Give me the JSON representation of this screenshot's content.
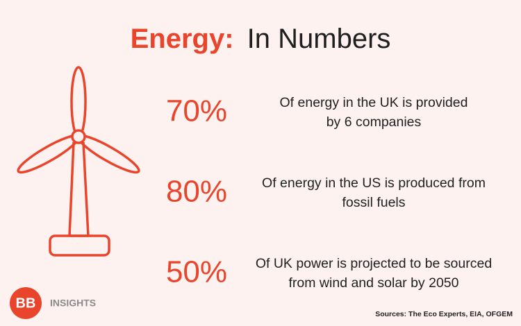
{
  "header": {
    "title_highlight": "Energy:",
    "title_rest": "In Numbers"
  },
  "stats": [
    {
      "figure": "70%",
      "lines": [
        "Of energy in the UK is provided",
        "by 6 companies"
      ]
    },
    {
      "figure": "80%",
      "lines": [
        "Of energy in the US is produced from",
        "fossil fuels"
      ]
    },
    {
      "figure": "50%",
      "lines": [
        "Of UK power is projected to be sourced",
        "from wind and solar by 2050"
      ]
    }
  ],
  "footer": {
    "logo_mark": "BB",
    "logo_text": "INSIGHTS",
    "sources": "Sources: The Eco Experts, EIA, OFGEM"
  }
}
